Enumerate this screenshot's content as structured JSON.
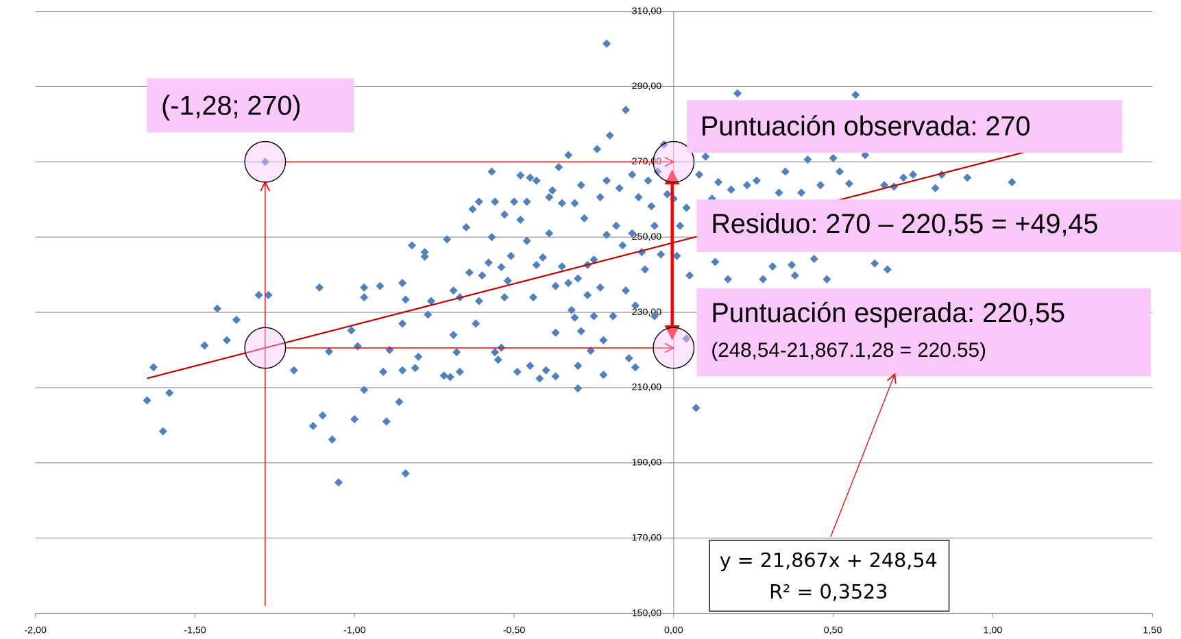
{
  "chart_data": {
    "type": "scatter",
    "xlim": [
      -2,
      1.5
    ],
    "ylim": [
      150,
      310
    ],
    "xticks": [
      {
        "value": -2,
        "label": "-2,00"
      },
      {
        "value": -1.5,
        "label": "-1,50"
      },
      {
        "value": -1,
        "label": "-1,00"
      },
      {
        "value": -0.5,
        "label": "-0,50"
      },
      {
        "value": 0,
        "label": "0,00"
      },
      {
        "value": 0.5,
        "label": "0,50"
      },
      {
        "value": 1,
        "label": "1,00"
      },
      {
        "value": 1.5,
        "label": "1,50"
      }
    ],
    "yticks": [
      {
        "value": 150,
        "label": "150,00"
      },
      {
        "value": 170,
        "label": "170,00"
      },
      {
        "value": 190,
        "label": "190,00"
      },
      {
        "value": 210,
        "label": "210,00"
      },
      {
        "value": 230,
        "label": "230,00"
      },
      {
        "value": 250,
        "label": "250,00"
      },
      {
        "value": 270,
        "label": "270,00"
      },
      {
        "value": 290,
        "label": "290,00"
      },
      {
        "value": 310,
        "label": "310,00"
      }
    ],
    "grid": true,
    "series": [
      {
        "color": "#4f81bd",
        "x": [
          -1.65,
          -1.63,
          -1.58,
          -1.6,
          -1.47,
          -1.43,
          -1.4,
          -1.37,
          -1.3,
          -1.27,
          -1.28,
          -1.19,
          -1.13,
          -1.1,
          -1.11,
          -1.08,
          -1.07,
          -1.05,
          -1.01,
          -0.99,
          -1.0,
          -0.97,
          -0.97,
          -0.97,
          -0.91,
          -0.92,
          -0.89,
          -0.9,
          -0.86,
          -0.85,
          -0.85,
          -0.85,
          -0.84,
          -0.84,
          -0.82,
          -0.81,
          -0.8,
          -0.78,
          -0.78,
          -0.77,
          -0.76,
          -0.72,
          -0.7,
          -0.71,
          -0.69,
          -0.69,
          -0.68,
          -0.67,
          -0.67,
          -0.65,
          -0.64,
          -0.63,
          -0.62,
          -0.61,
          -0.61,
          -0.6,
          -0.58,
          -0.57,
          -0.57,
          -0.56,
          -0.56,
          -0.55,
          -0.54,
          -0.54,
          -0.53,
          -0.53,
          -0.52,
          -0.51,
          -0.5,
          -0.49,
          -0.48,
          -0.48,
          -0.46,
          -0.46,
          -0.45,
          -0.45,
          -0.44,
          -0.43,
          -0.43,
          -0.42,
          -0.41,
          -0.4,
          -0.39,
          -0.39,
          -0.38,
          -0.37,
          -0.37,
          -0.37,
          -0.36,
          -0.35,
          -0.35,
          -0.33,
          -0.33,
          -0.32,
          -0.31,
          -0.31,
          -0.3,
          -0.3,
          -0.3,
          -0.29,
          -0.29,
          -0.28,
          -0.27,
          -0.27,
          -0.26,
          -0.25,
          -0.25,
          -0.24,
          -0.23,
          -0.23,
          -0.22,
          -0.22,
          -0.21,
          -0.21,
          -0.21,
          -0.2,
          -0.19,
          -0.18,
          -0.17,
          -0.16,
          -0.15,
          -0.15,
          -0.14,
          -0.13,
          -0.13,
          -0.12,
          -0.12,
          -0.11,
          -0.1,
          -0.09,
          -0.08,
          -0.07,
          -0.06,
          -0.06,
          -0.05,
          -0.04,
          -0.02,
          -0.03,
          0,
          0.01,
          0.02,
          0.04,
          0.04,
          0.05,
          0.07,
          0.08,
          0.09,
          0.1,
          0.12,
          0.13,
          0.14,
          0.15,
          0.17,
          0.18,
          0.2,
          0.21,
          0.23,
          0.24,
          0.26,
          0.28,
          0.29,
          0.31,
          0.33,
          0.35,
          0.37,
          0.38,
          0.4,
          0.42,
          0.44,
          0.46,
          0.48,
          0.5,
          0.52,
          0.55,
          0.57,
          0.6,
          0.63,
          0.66,
          0.67,
          0.69,
          0.72,
          0.75,
          0.82,
          0.84,
          0.92,
          1.06
        ],
        "values": [
          206.6,
          215.4,
          208.6,
          198.4,
          221.2,
          231,
          222.6,
          228,
          234.6,
          234.6,
          270,
          214.6,
          199.8,
          202.6,
          236.6,
          219.6,
          196.2,
          184.8,
          225.2,
          221,
          201.6,
          209.4,
          236.6,
          234,
          214.2,
          237,
          220,
          201,
          206.2,
          237.8,
          227,
          214.6,
          187.2,
          233.4,
          247.8,
          215.2,
          218.2,
          246,
          244.8,
          229.4,
          233,
          213.2,
          212.8,
          249.4,
          235.8,
          224,
          219.4,
          234,
          214.2,
          252.6,
          240.6,
          257.4,
          227,
          259.4,
          233,
          239.8,
          243.2,
          250,
          267.4,
          259.4,
          219.4,
          217.4,
          220.6,
          242,
          234,
          256,
          238.4,
          245,
          259.4,
          214.2,
          266.4,
          254.6,
          259.4,
          249,
          215.8,
          265.8,
          234,
          265,
          242.6,
          212.4,
          244.6,
          214.6,
          260.6,
          251,
          262.4,
          213,
          237,
          224.6,
          268.6,
          242.2,
          259,
          271.8,
          237.8,
          230.6,
          259,
          228.6,
          209.8,
          239,
          215.8,
          263.8,
          225,
          255,
          234.6,
          242.6,
          219.8,
          244,
          229,
          273.4,
          260.6,
          236.6,
          213.4,
          222.6,
          301.4,
          265,
          250.6,
          277,
          229,
          253,
          263,
          247.8,
          283.8,
          235.8,
          217.8,
          251,
          266.6,
          215.4,
          231.8,
          260.6,
          246,
          241.4,
          265,
          258.2,
          229,
          253,
          267.4,
          245.4,
          261.4,
          274.6,
          260.2,
          245,
          253,
          257.8,
          223,
          239.8,
          204.6,
          266.6,
          247,
          271.4,
          260.2,
          243.4,
          264.6,
          255,
          238.8,
          262.6,
          288.2,
          235,
          263.8,
          249.8,
          265,
          238.8,
          253,
          242.2,
          261.8,
          267.4,
          242.6,
          239.8,
          261.8,
          270.6,
          244.2,
          263.8,
          238.8,
          271,
          267.4,
          264.2,
          287.8,
          271.8,
          243,
          263.8,
          241.4,
          263.4,
          265.8,
          266.6,
          263,
          266.6,
          265.8,
          264.6
        ]
      }
    ],
    "trendline": {
      "color": "#c00000",
      "slope": 21.867,
      "intercept": 248.54,
      "x_range": [
        -1.65,
        1.1
      ]
    },
    "highlight": {
      "x": -1.28,
      "observed": 270,
      "expected": 220.55,
      "color": "#ff0000"
    },
    "annotations": {
      "point_label": "(-1,28; 270)",
      "observed_label": "Puntuación observada: 270",
      "residual_label": "Residuo: 270 – 220,55 = +49,45",
      "expected_label": "Puntuación esperada: 220,55",
      "expected_formula": "(248,54-21,867.1,28 = 220.55)",
      "equation": "y = 21,867x + 248,54",
      "r_squared": "R² = 0,3523"
    }
  }
}
